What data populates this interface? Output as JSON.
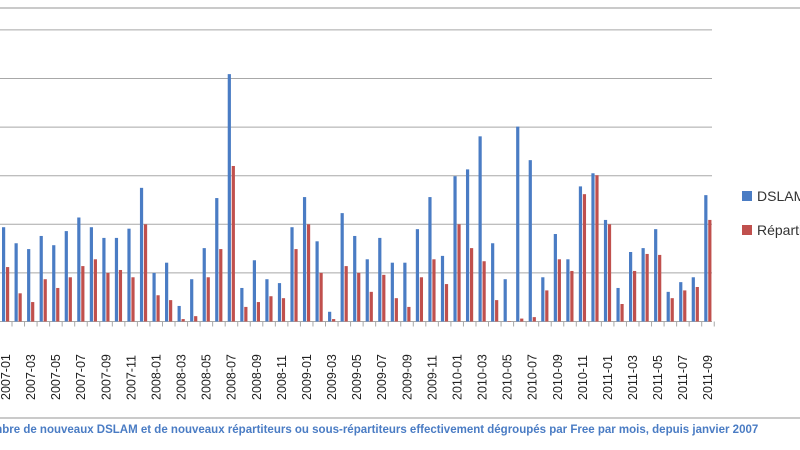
{
  "chart_data": {
    "type": "bar",
    "title": "",
    "caption": "mbre de nouveaux DSLAM et de nouveaux répartiteurs ou sous-répartiteurs effectivement dégroupés par Free par mois, depuis janvier 2007",
    "xlabel": "",
    "ylabel": "",
    "ylim": [
      0,
      600
    ],
    "grid": true,
    "legend_position": "right",
    "categories": [
      "2007-01",
      "2007-02",
      "2007-03",
      "2007-04",
      "2007-05",
      "2007-06",
      "2007-07",
      "2007-08",
      "2007-09",
      "2007-10",
      "2007-11",
      "2007-12",
      "2008-01",
      "2008-02",
      "2008-03",
      "2008-04",
      "2008-05",
      "2008-06",
      "2008-07",
      "2008-08",
      "2008-09",
      "2008-10",
      "2008-11",
      "2008-12",
      "2009-01",
      "2009-02",
      "2009-03",
      "2009-04",
      "2009-05",
      "2009-06",
      "2009-07",
      "2009-08",
      "2009-09",
      "2009-10",
      "2009-11",
      "2009-12",
      "2010-01",
      "2010-02",
      "2010-03",
      "2010-04",
      "2010-05",
      "2010-06",
      "2010-07",
      "2010-08",
      "2010-09",
      "2010-10",
      "2010-11",
      "2010-12",
      "2011-01",
      "2011-02",
      "2011-03",
      "2011-04",
      "2011-05",
      "2011-06",
      "2011-07",
      "2011-08",
      "2011-09"
    ],
    "tick_labels": [
      "2007-01",
      "2007-03",
      "2007-05",
      "2007-07",
      "2007-09",
      "2007-11",
      "2008-01",
      "2008-03",
      "2008-05",
      "2008-07",
      "2008-09",
      "2008-11",
      "2009-01",
      "2009-03",
      "2009-05",
      "2009-07",
      "2009-09",
      "2009-11",
      "2010-01",
      "2010-03",
      "2010-05",
      "2010-07",
      "2010-09",
      "2010-11",
      "2011-01",
      "2011-03",
      "2011-05",
      "2011-07",
      "2011-09"
    ],
    "series": [
      {
        "name": "DSLAM",
        "color": "#4a7cc4",
        "values": [
          194,
          161,
          149,
          176,
          157,
          186,
          214,
          194,
          172,
          172,
          191,
          275,
          100,
          121,
          32,
          87,
          151,
          254,
          509,
          69,
          126,
          87,
          79,
          194,
          256,
          165,
          20,
          223,
          176,
          128,
          172,
          121,
          121,
          190,
          256,
          135,
          299,
          313,
          381,
          161,
          87,
          401,
          332,
          91,
          180,
          128,
          278,
          305,
          209,
          69,
          143,
          151,
          190,
          61,
          81,
          91,
          260
        ]
      },
      {
        "name": "Répartiteurs",
        "color": "#c0504d",
        "values": [
          112,
          58,
          40,
          87,
          69,
          91,
          114,
          128,
          100,
          106,
          91,
          200,
          54,
          44,
          5,
          11,
          91,
          149,
          320,
          30,
          40,
          52,
          48,
          149,
          200,
          100,
          5,
          114,
          100,
          61,
          96,
          48,
          30,
          91,
          128,
          77,
          200,
          151,
          124,
          44,
          1,
          6,
          9,
          64,
          128,
          104,
          262,
          301,
          200,
          36,
          104,
          139,
          137,
          48,
          64,
          71,
          209
        ]
      }
    ]
  }
}
